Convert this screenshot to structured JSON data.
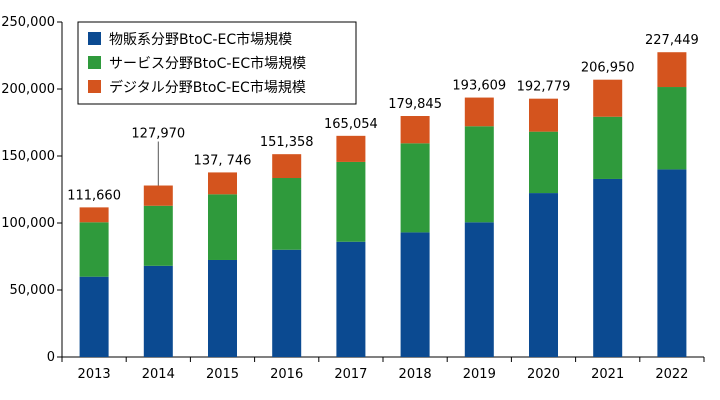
{
  "chart_data": {
    "type": "bar",
    "stacked": true,
    "categories": [
      "2013",
      "2014",
      "2015",
      "2016",
      "2017",
      "2018",
      "2019",
      "2020",
      "2021",
      "2022"
    ],
    "series": [
      {
        "name": "物販系分野BtoC-EC市場規模",
        "color": "#0b4a91",
        "values": [
          59931,
          68043,
          72398,
          80043,
          86008,
          92992,
          100515,
          122333,
          132865,
          139997
        ]
      },
      {
        "name": "サービス分野BtoC-EC市場規模",
        "color": "#2f9a3c",
        "values": [
          40600,
          44816,
          49014,
          53532,
          59568,
          66471,
          71672,
          45832,
          46424,
          61477
        ]
      },
      {
        "name": "デジタル分野BtoC-EC市場規模",
        "color": "#d4541e",
        "values": [
          11129,
          15111,
          16334,
          17782,
          19478,
          20382,
          21422,
          24614,
          27661,
          25975
        ]
      }
    ],
    "totals": [
      111660,
      127970,
      137746,
      151358,
      165054,
      179845,
      193609,
      192779,
      206950,
      227449
    ],
    "total_labels": [
      "111,660",
      "127,970",
      "137, 746",
      "151,358",
      "165,054",
      "179,845",
      "193,609",
      "192,779",
      "206,950",
      "227,449"
    ],
    "ylim": [
      0,
      250000
    ],
    "yticks": [
      0,
      50000,
      100000,
      150000,
      200000,
      250000
    ],
    "ytick_labels": [
      "0",
      "50,000",
      "100,000",
      "150,000",
      "200,000",
      "250,000"
    ],
    "legend_position": "top-left",
    "grid": false
  }
}
